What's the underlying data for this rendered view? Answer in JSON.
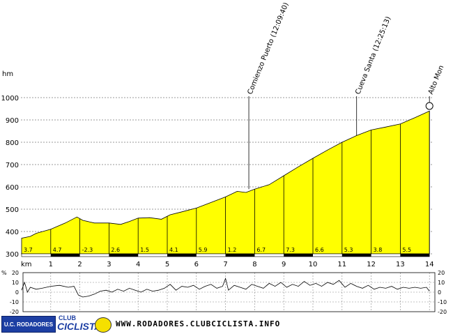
{
  "chart_data": {
    "type": "area",
    "y_unit_label": "hm",
    "x_unit_label": "km",
    "y_ticks": [
      300,
      400,
      500,
      600,
      700,
      800,
      900,
      1000
    ],
    "x_ticks": [
      1,
      2,
      3,
      4,
      5,
      6,
      7,
      8,
      9,
      10,
      11,
      12,
      13,
      14
    ],
    "ylim": [
      300,
      1000
    ],
    "xlim": [
      0,
      14.1
    ],
    "fill_color": "#ffff00",
    "elevation_profile": {
      "x": [
        0,
        0.3,
        0.5,
        1,
        1.5,
        1.9,
        2.1,
        2.5,
        3,
        3.4,
        3.7,
        4,
        4.4,
        4.8,
        5.1,
        5.5,
        6,
        6.5,
        7,
        7.4,
        7.7,
        8,
        8.5,
        9,
        9.5,
        10,
        10.5,
        11,
        11.5,
        12,
        12.5,
        13,
        13.5,
        14
      ],
      "y": [
        370,
        378,
        392,
        410,
        438,
        465,
        450,
        438,
        438,
        432,
        445,
        460,
        462,
        455,
        475,
        488,
        505,
        530,
        555,
        580,
        575,
        590,
        610,
        650,
        690,
        728,
        765,
        800,
        830,
        855,
        868,
        882,
        910,
        940
      ]
    },
    "segment_gradients": [
      {
        "km": 0,
        "percent": "3.7"
      },
      {
        "km": 1,
        "percent": "4.7"
      },
      {
        "km": 2,
        "percent": "-2.3"
      },
      {
        "km": 3,
        "percent": "2.6"
      },
      {
        "km": 4,
        "percent": "1.5"
      },
      {
        "km": 5,
        "percent": "4.1"
      },
      {
        "km": 6,
        "percent": "5.9"
      },
      {
        "km": 7,
        "percent": "1.2"
      },
      {
        "km": 8,
        "percent": "6.7"
      },
      {
        "km": 9,
        "percent": "7.3"
      },
      {
        "km": 10,
        "percent": "6.6"
      },
      {
        "km": 11,
        "percent": "5.3"
      },
      {
        "km": 12,
        "percent": "3.8"
      },
      {
        "km": 13,
        "percent": "5.5"
      }
    ],
    "annotations": [
      {
        "label": "Comienzo Puerto (12:09:40)",
        "km": 7.8,
        "elevation": 590
      },
      {
        "label": "Cueva Santa (12:25:13)",
        "km": 11.5,
        "elevation": 830
      },
      {
        "label": "Alto Mon",
        "km": 14,
        "elevation": 950
      }
    ],
    "gradient_plot": {
      "y_label": "%",
      "y_ticks": [
        -20,
        -10,
        0,
        10,
        20
      ],
      "right_ticks": [
        20,
        10,
        0,
        -10,
        -20
      ],
      "ylim": [
        -20,
        20
      ],
      "x": [
        0,
        0.1,
        0.2,
        0.3,
        0.5,
        0.7,
        1,
        1.3,
        1.6,
        1.8,
        1.95,
        2.1,
        2.3,
        2.5,
        2.7,
        2.9,
        3.1,
        3.3,
        3.5,
        3.7,
        3.9,
        4.1,
        4.3,
        4.5,
        4.7,
        4.9,
        5.1,
        5.3,
        5.5,
        5.7,
        5.9,
        6.1,
        6.3,
        6.5,
        6.7,
        6.9,
        7,
        7.1,
        7.3,
        7.5,
        7.7,
        7.9,
        8.1,
        8.3,
        8.5,
        8.7,
        8.9,
        9.1,
        9.3,
        9.5,
        9.7,
        9.9,
        10.1,
        10.3,
        10.5,
        10.7,
        10.9,
        11.1,
        11.3,
        11.5,
        11.7,
        11.9,
        12.1,
        12.3,
        12.5,
        12.7,
        12.9,
        13.1,
        13.3,
        13.5,
        13.7,
        13.9,
        14
      ],
      "y": [
        2,
        10,
        0,
        5,
        3,
        4,
        6,
        7,
        5,
        6,
        -3,
        -5,
        -4,
        -2,
        1,
        2,
        0,
        3,
        1,
        4,
        2,
        0,
        3,
        1,
        2,
        4,
        8,
        2,
        6,
        5,
        7,
        3,
        6,
        8,
        4,
        6,
        14,
        2,
        7,
        5,
        3,
        8,
        6,
        4,
        9,
        6,
        10,
        5,
        8,
        6,
        11,
        7,
        9,
        6,
        10,
        8,
        12,
        5,
        9,
        6,
        4,
        7,
        3,
        5,
        4,
        6,
        3,
        5,
        4,
        5,
        4,
        5,
        1
      ]
    }
  },
  "footer": {
    "club_logo_text": "U.C. RODADORES",
    "club_word": "CLUB",
    "ciclista_word": "CICLISTA",
    "website": "WWW.RODADORES.CLUBCICLISTA.INFO"
  }
}
